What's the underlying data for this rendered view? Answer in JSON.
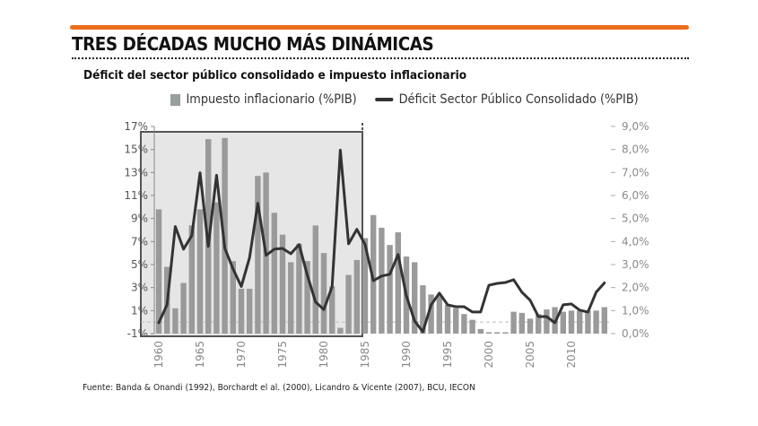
{
  "header": {
    "title": "TRES DÉCADAS MUCHO MÁS DINÁMICAS",
    "subtitle": "Déficit del sector público consolidado e impuesto inflacionario",
    "accent_color": "#ec6d1c"
  },
  "source": "Fuente: Banda & Onandi (1992), Borchardt el al. (2000), Licandro & Vicente (2007), BCU, IECON",
  "chart_data": {
    "type": "bar+line",
    "title": "Déficit del sector público consolidado e impuesto inflacionario",
    "legend": {
      "position": "top-right",
      "entries": [
        "Impuesto inflacionario (%PIB)",
        "Déficit Sector Público Consolidado (%PIB)"
      ]
    },
    "x": [
      1960,
      1961,
      1962,
      1963,
      1964,
      1965,
      1966,
      1967,
      1968,
      1969,
      1970,
      1971,
      1972,
      1973,
      1974,
      1975,
      1976,
      1977,
      1978,
      1979,
      1980,
      1981,
      1982,
      1983,
      1984,
      1985,
      1986,
      1987,
      1988,
      1989,
      1990,
      1991,
      1992,
      1993,
      1994,
      1995,
      1996,
      1997,
      1998,
      1999,
      2000,
      2001,
      2002,
      2003,
      2004,
      2005,
      2006,
      2007,
      2008,
      2009,
      2010,
      2011,
      2012,
      2013,
      2014
    ],
    "x_tick_labels": [
      "1960",
      "1965",
      "1970",
      "1975",
      "1980",
      "1985",
      "1990",
      "1995",
      "2000",
      "2005",
      "2010"
    ],
    "series": [
      {
        "name": "Impuesto inflacionario (%PIB)",
        "type": "bar",
        "axis": "left",
        "color": "#9a9a9a",
        "values": [
          9.8,
          4.8,
          1.2,
          3.4,
          8.4,
          9.8,
          15.9,
          10.4,
          16.0,
          5.3,
          2.9,
          2.9,
          12.7,
          13.0,
          9.5,
          7.6,
          5.2,
          6.8,
          5.3,
          8.4,
          6.0,
          3.1,
          -0.5,
          4.1,
          5.4,
          7.3,
          9.3,
          8.2,
          6.7,
          7.8,
          5.7,
          5.2,
          3.2,
          2.4,
          2.3,
          1.5,
          1.2,
          0.7,
          0.2,
          -0.6,
          -0.9,
          -0.9,
          -1.0,
          0.9,
          0.8,
          0.3,
          0.7,
          1.1,
          1.3,
          0.9,
          1.0,
          1.0,
          1.0,
          1.0,
          1.3
        ]
      },
      {
        "name": "Déficit Sector Público Consolidado (%PIB)",
        "type": "line",
        "axis": "right",
        "color": "#333333",
        "values": [
          0.47,
          1.25,
          4.65,
          3.67,
          4.26,
          6.99,
          3.79,
          6.88,
          3.71,
          2.81,
          2.05,
          3.3,
          5.66,
          3.4,
          3.67,
          3.7,
          3.47,
          3.87,
          2.54,
          1.37,
          1.05,
          2.03,
          7.97,
          3.9,
          4.53,
          3.87,
          2.3,
          2.5,
          2.58,
          3.44,
          1.64,
          0.55,
          0.08,
          1.25,
          1.76,
          1.25,
          1.17,
          1.17,
          0.94,
          0.94,
          2.1,
          2.18,
          2.22,
          2.34,
          1.8,
          1.45,
          0.74,
          0.74,
          0.47,
          1.25,
          1.29,
          1.02,
          0.94,
          1.8,
          2.2
        ]
      }
    ],
    "left_axis": {
      "ylim": [
        -1,
        17
      ],
      "tick_labels": [
        "-1%",
        "1%",
        "3%",
        "5%",
        "7%",
        "9%",
        "11%",
        "13%",
        "15%",
        "17%"
      ]
    },
    "right_axis": {
      "ylim": [
        0,
        9
      ],
      "tick_labels": [
        "0,0%",
        "1,0%",
        "2,0%",
        "3,0%",
        "4,0%",
        "5,0%",
        "6,0%",
        "7,0%",
        "8,0%",
        "9,0%"
      ]
    },
    "highlight_period": [
      1960,
      1984
    ],
    "divider_year": 1985,
    "grid": false
  }
}
